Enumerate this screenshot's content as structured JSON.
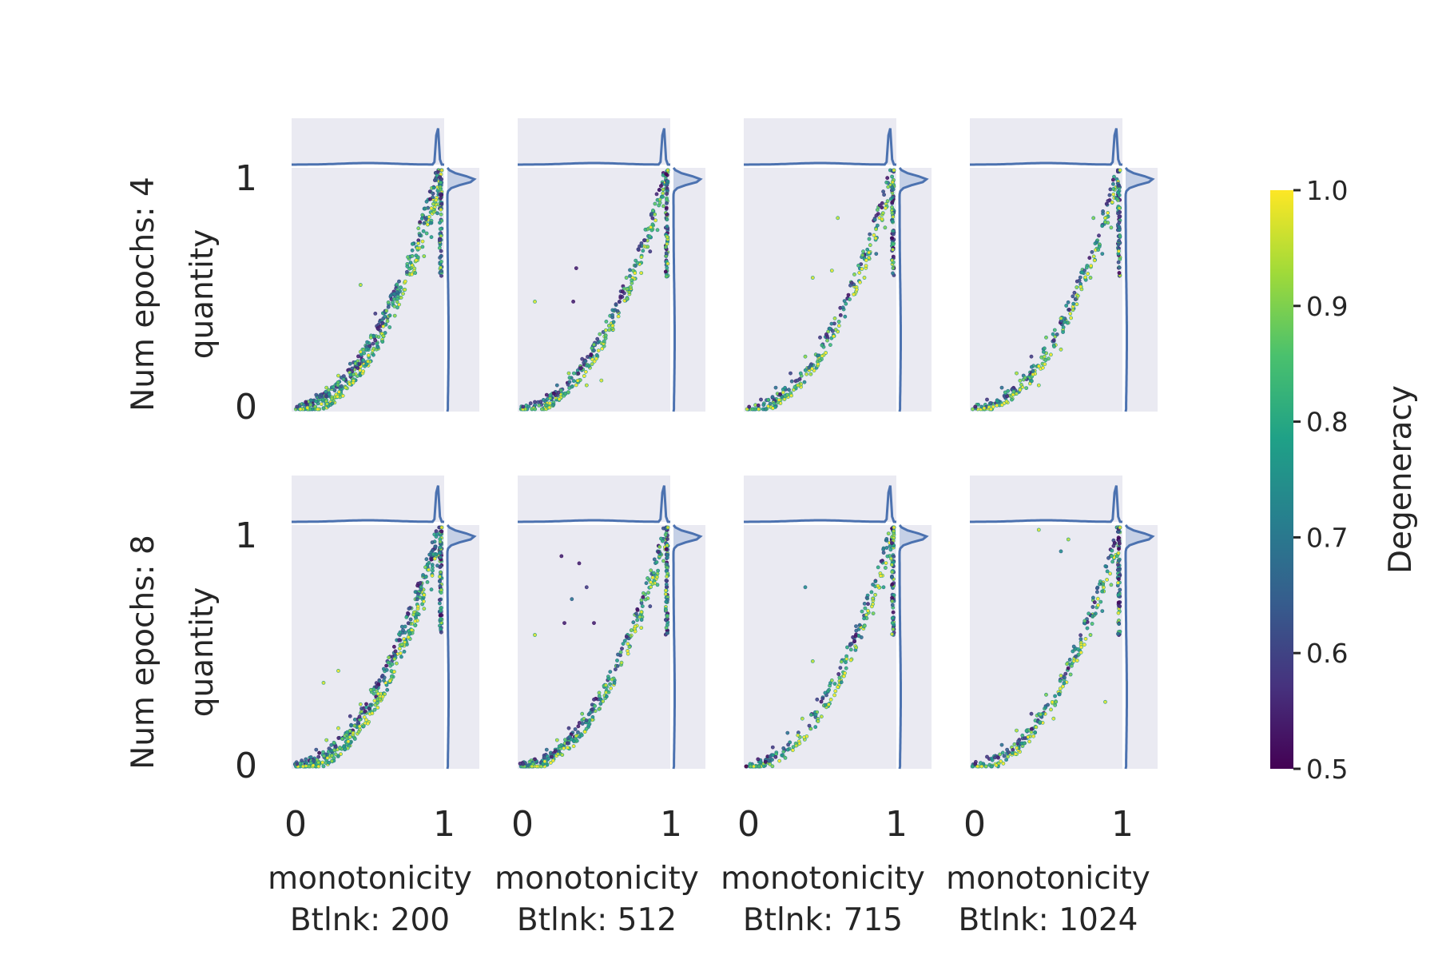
{
  "figure": {
    "row_labels": [
      {
        "line1": "Num epochs: 4",
        "line2": "quantity"
      },
      {
        "line1": "Num epochs: 8",
        "line2": "quantity"
      }
    ],
    "col_labels": [
      {
        "line1": "monotonicity",
        "line2": "Btlnk: 200"
      },
      {
        "line1": "monotonicity",
        "line2": "Btlnk: 512"
      },
      {
        "line1": "monotonicity",
        "line2": "Btlnk: 715"
      },
      {
        "line1": "monotonicity",
        "line2": "Btlnk: 1024"
      }
    ],
    "x_ticks": [
      "0",
      "1"
    ],
    "y_ticks": [
      "0",
      "1"
    ]
  },
  "colorbar": {
    "label": "Degeneracy",
    "ticks": [
      "1.0",
      "0.9",
      "0.8",
      "0.7",
      "0.6",
      "0.5"
    ],
    "cmap": [
      "#440154",
      "#46327e",
      "#365c8d",
      "#277f8e",
      "#1fa187",
      "#4ac16d",
      "#a0da39",
      "#fde725"
    ]
  },
  "colors": {
    "panel_bg": "#eaeaf2",
    "kde_line": "#4c72b0",
    "kde_fill": "#a6b9dc"
  },
  "chart_data": {
    "type": "scatter",
    "x_field": "monotonicity",
    "y_field": "quantity",
    "color_field": "Degeneracy",
    "xlim": [
      0,
      1
    ],
    "ylim": [
      0,
      1
    ],
    "color_range": [
      0.5,
      1.0
    ],
    "marginals": "kde",
    "grid": false,
    "colorbar_position": "right",
    "panels": [
      {
        "num_epochs": 4,
        "btlnk": 200,
        "points": [
          [
            0.02,
            0.01,
            0.6
          ],
          [
            0.08,
            0.03,
            0.55
          ],
          [
            0.15,
            0.06,
            0.65
          ],
          [
            0.22,
            0.09,
            0.95
          ],
          [
            0.3,
            0.14,
            0.97
          ],
          [
            0.38,
            0.19,
            0.7
          ],
          [
            0.45,
            0.24,
            0.98
          ],
          [
            0.52,
            0.3,
            0.92
          ],
          [
            0.6,
            0.36,
            0.6
          ],
          [
            0.68,
            0.43,
            0.9
          ],
          [
            0.75,
            0.5,
            0.97
          ],
          [
            0.82,
            0.57,
            0.85
          ],
          [
            0.88,
            0.64,
            0.93
          ],
          [
            0.93,
            0.72,
            0.8
          ],
          [
            0.97,
            0.82,
            0.75
          ],
          [
            0.99,
            0.93,
            0.9
          ],
          [
            1.0,
            1.0,
            1.0
          ],
          [
            0.35,
            0.09,
            0.98
          ],
          [
            0.4,
            0.11,
            1.0
          ],
          [
            0.5,
            0.2,
            0.98
          ],
          [
            0.55,
            0.4,
            0.6
          ],
          [
            0.45,
            0.52,
            0.95
          ]
        ]
      },
      {
        "num_epochs": 4,
        "btlnk": 512,
        "points": [
          [
            0.02,
            0.01,
            0.58
          ],
          [
            0.1,
            0.03,
            0.6
          ],
          [
            0.18,
            0.06,
            0.55
          ],
          [
            0.25,
            0.1,
            0.7
          ],
          [
            0.33,
            0.15,
            0.95
          ],
          [
            0.42,
            0.21,
            0.6
          ],
          [
            0.5,
            0.27,
            0.9
          ],
          [
            0.58,
            0.33,
            0.97
          ],
          [
            0.66,
            0.41,
            0.65
          ],
          [
            0.74,
            0.49,
            0.92
          ],
          [
            0.82,
            0.57,
            0.98
          ],
          [
            0.88,
            0.66,
            0.6
          ],
          [
            0.93,
            0.75,
            0.85
          ],
          [
            0.97,
            0.85,
            0.9
          ],
          [
            1.0,
            1.0,
            0.98
          ],
          [
            0.38,
            0.59,
            0.55
          ],
          [
            0.36,
            0.45,
            0.55
          ],
          [
            0.1,
            0.45,
            0.97
          ],
          [
            0.55,
            0.12,
            0.98
          ],
          [
            0.45,
            0.1,
            0.97
          ]
        ]
      },
      {
        "num_epochs": 4,
        "btlnk": 715,
        "points": [
          [
            0.02,
            0.01,
            0.55
          ],
          [
            0.1,
            0.04,
            0.6
          ],
          [
            0.2,
            0.09,
            0.7
          ],
          [
            0.3,
            0.15,
            0.62
          ],
          [
            0.4,
            0.22,
            0.92
          ],
          [
            0.5,
            0.3,
            0.6
          ],
          [
            0.6,
            0.38,
            0.95
          ],
          [
            0.7,
            0.46,
            0.85
          ],
          [
            0.8,
            0.55,
            0.98
          ],
          [
            0.88,
            0.65,
            0.7
          ],
          [
            0.94,
            0.76,
            0.9
          ],
          [
            0.98,
            0.88,
            0.8
          ],
          [
            1.0,
            1.0,
            1.0
          ],
          [
            0.45,
            0.55,
            0.97
          ],
          [
            0.58,
            0.58,
            0.98
          ],
          [
            0.62,
            0.8,
            0.96
          ],
          [
            0.25,
            0.07,
            0.98
          ],
          [
            0.35,
            0.1,
            0.97
          ]
        ]
      },
      {
        "num_epochs": 4,
        "btlnk": 1024,
        "points": [
          [
            0.02,
            0.01,
            0.55
          ],
          [
            0.1,
            0.04,
            0.6
          ],
          [
            0.2,
            0.09,
            0.7
          ],
          [
            0.3,
            0.15,
            0.95
          ],
          [
            0.4,
            0.22,
            0.6
          ],
          [
            0.5,
            0.3,
            0.9
          ],
          [
            0.6,
            0.38,
            0.97
          ],
          [
            0.7,
            0.46,
            0.65
          ],
          [
            0.8,
            0.55,
            0.92
          ],
          [
            0.88,
            0.65,
            0.75
          ],
          [
            0.94,
            0.76,
            0.9
          ],
          [
            0.98,
            0.88,
            0.85
          ],
          [
            1.0,
            1.0,
            1.0
          ],
          [
            0.82,
            0.8,
            0.9
          ],
          [
            0.9,
            0.8,
            0.98
          ],
          [
            0.6,
            0.25,
            0.97
          ],
          [
            0.45,
            0.1,
            0.98
          ]
        ]
      },
      {
        "num_epochs": 8,
        "btlnk": 200,
        "points": [
          [
            0.02,
            0.01,
            0.6
          ],
          [
            0.08,
            0.03,
            0.7
          ],
          [
            0.15,
            0.07,
            0.65
          ],
          [
            0.22,
            0.11,
            0.95
          ],
          [
            0.3,
            0.16,
            0.98
          ],
          [
            0.38,
            0.21,
            0.6
          ],
          [
            0.45,
            0.26,
            0.97
          ],
          [
            0.52,
            0.32,
            0.9
          ],
          [
            0.6,
            0.38,
            0.62
          ],
          [
            0.68,
            0.45,
            0.93
          ],
          [
            0.75,
            0.52,
            0.98
          ],
          [
            0.82,
            0.59,
            0.85
          ],
          [
            0.88,
            0.66,
            0.95
          ],
          [
            0.93,
            0.74,
            0.8
          ],
          [
            0.97,
            0.84,
            0.7
          ],
          [
            0.99,
            0.94,
            0.9
          ],
          [
            1.0,
            1.0,
            1.0
          ],
          [
            0.4,
            0.14,
            0.98
          ],
          [
            0.5,
            0.18,
            1.0
          ],
          [
            0.2,
            0.35,
            0.97
          ],
          [
            0.3,
            0.4,
            0.98
          ]
        ]
      },
      {
        "num_epochs": 8,
        "btlnk": 512,
        "points": [
          [
            0.02,
            0.01,
            0.6
          ],
          [
            0.1,
            0.03,
            0.55
          ],
          [
            0.18,
            0.07,
            0.7
          ],
          [
            0.25,
            0.11,
            0.95
          ],
          [
            0.33,
            0.16,
            0.6
          ],
          [
            0.42,
            0.22,
            0.9
          ],
          [
            0.5,
            0.28,
            0.58
          ],
          [
            0.58,
            0.34,
            0.97
          ],
          [
            0.66,
            0.42,
            0.65
          ],
          [
            0.74,
            0.5,
            0.92
          ],
          [
            0.82,
            0.58,
            0.98
          ],
          [
            0.88,
            0.67,
            0.62
          ],
          [
            0.93,
            0.76,
            0.85
          ],
          [
            0.97,
            0.86,
            0.9
          ],
          [
            1.0,
            1.0,
            0.98
          ],
          [
            0.28,
            0.88,
            0.55
          ],
          [
            0.4,
            0.85,
            0.55
          ],
          [
            0.45,
            0.75,
            0.6
          ],
          [
            0.35,
            0.7,
            0.7
          ],
          [
            0.5,
            0.6,
            0.55
          ],
          [
            0.3,
            0.6,
            0.55
          ],
          [
            0.1,
            0.55,
            0.97
          ]
        ]
      },
      {
        "num_epochs": 8,
        "btlnk": 715,
        "points": [
          [
            0.0,
            0.0,
            0.5
          ],
          [
            0.08,
            0.03,
            0.55
          ],
          [
            0.18,
            0.08,
            0.6
          ],
          [
            0.28,
            0.14,
            0.7
          ],
          [
            0.38,
            0.2,
            0.95
          ],
          [
            0.48,
            0.28,
            0.62
          ],
          [
            0.58,
            0.36,
            0.92
          ],
          [
            0.68,
            0.45,
            0.98
          ],
          [
            0.78,
            0.54,
            0.7
          ],
          [
            0.86,
            0.64,
            0.9
          ],
          [
            0.93,
            0.75,
            0.8
          ],
          [
            0.98,
            0.87,
            0.95
          ],
          [
            1.0,
            1.0,
            1.0
          ],
          [
            0.4,
            0.75,
            0.75
          ],
          [
            0.45,
            0.44,
            0.95
          ],
          [
            0.35,
            0.13,
            0.98
          ]
        ]
      },
      {
        "num_epochs": 8,
        "btlnk": 1024,
        "points": [
          [
            0.02,
            0.01,
            0.55
          ],
          [
            0.1,
            0.04,
            0.6
          ],
          [
            0.2,
            0.09,
            0.7
          ],
          [
            0.3,
            0.15,
            0.95
          ],
          [
            0.4,
            0.22,
            0.6
          ],
          [
            0.5,
            0.3,
            0.9
          ],
          [
            0.6,
            0.38,
            0.97
          ],
          [
            0.7,
            0.46,
            0.65
          ],
          [
            0.8,
            0.55,
            0.92
          ],
          [
            0.88,
            0.65,
            0.75
          ],
          [
            0.94,
            0.76,
            0.9
          ],
          [
            0.98,
            0.88,
            0.85
          ],
          [
            1.0,
            1.0,
            1.0
          ],
          [
            0.45,
            0.99,
            0.98
          ],
          [
            0.6,
            0.9,
            0.75
          ],
          [
            0.65,
            0.95,
            0.95
          ],
          [
            0.9,
            0.27,
            0.97
          ],
          [
            0.55,
            0.2,
            0.98
          ]
        ]
      }
    ]
  }
}
